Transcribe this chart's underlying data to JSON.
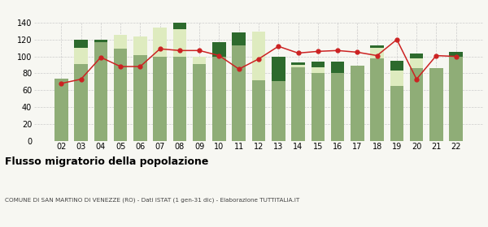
{
  "years": [
    "02",
    "03",
    "04",
    "05",
    "06",
    "07",
    "08",
    "09",
    "10",
    "11",
    "12",
    "13",
    "14",
    "15",
    "16",
    "17",
    "18",
    "19",
    "20",
    "21",
    "22"
  ],
  "iscritti_comuni": [
    74,
    91,
    117,
    109,
    102,
    100,
    100,
    91,
    100,
    113,
    72,
    71,
    87,
    80,
    80,
    89,
    98,
    65,
    86,
    86,
    100
  ],
  "iscritti_estero": [
    0,
    0,
    0,
    0,
    0,
    0,
    0,
    0,
    0,
    0,
    57,
    0,
    0,
    0,
    0,
    0,
    0,
    0,
    0,
    0,
    0
  ],
  "iscritti_estero2": [
    0,
    19,
    0,
    17,
    22,
    34,
    32,
    9,
    0,
    0,
    0,
    0,
    3,
    7,
    0,
    0,
    12,
    18,
    12,
    0,
    0
  ],
  "iscritti_altri": [
    0,
    10,
    3,
    0,
    0,
    0,
    8,
    0,
    17,
    15,
    0,
    29,
    3,
    7,
    14,
    0,
    3,
    12,
    5,
    0,
    5
  ],
  "cancellati": [
    68,
    73,
    99,
    88,
    88,
    109,
    107,
    107,
    101,
    85,
    97,
    112,
    104,
    106,
    107,
    105,
    101,
    120,
    73,
    101,
    100
  ],
  "color_comuni": "#8fad77",
  "color_estero": "#deebbf",
  "color_altri": "#2d6a2d",
  "color_cancellati": "#cc2222",
  "color_line": "#dd6666",
  "background_color": "#f7f7f2",
  "grid_color": "#cccccc",
  "title": "Flusso migratorio della popolazione",
  "subtitle": "COMUNE DI SAN MARTINO DI VENEZZE (RO) - Dati ISTAT (1 gen-31 dic) - Elaborazione TUTTITALIA.IT",
  "ylim": [
    0,
    140
  ],
  "yticks": [
    0,
    20,
    40,
    60,
    80,
    100,
    120,
    140
  ]
}
